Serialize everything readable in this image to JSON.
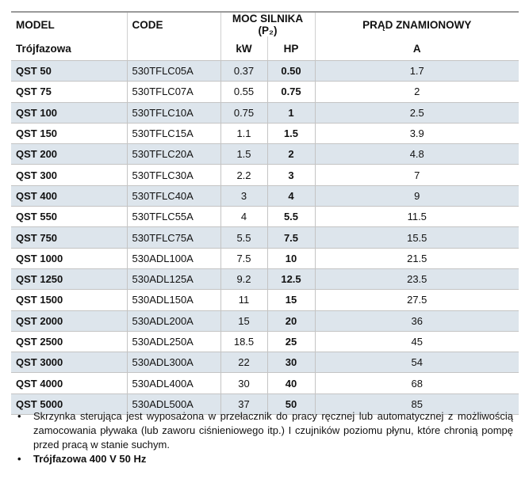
{
  "headers": {
    "model": "MODEL",
    "code": "CODE",
    "power": "MOC SILNIKA  (P₂)",
    "current": "PRĄD ZNAMIONOWY",
    "subtype": "Trójfazowa",
    "kw": "kW",
    "hp": "HP",
    "a": "A"
  },
  "rows": [
    [
      "QST 50",
      "530TFLC05A",
      "0.37",
      "0.50",
      "1.7"
    ],
    [
      "QST 75",
      "530TFLC07A",
      "0.55",
      "0.75",
      "2"
    ],
    [
      "QST 100",
      "530TFLC10A",
      "0.75",
      "1",
      "2.5"
    ],
    [
      "QST 150",
      "530TFLC15A",
      "1.1",
      "1.5",
      "3.9"
    ],
    [
      "QST 200",
      "530TFLC20A",
      "1.5",
      "2",
      "4.8"
    ],
    [
      "QST 300",
      "530TFLC30A",
      "2.2",
      "3",
      "7"
    ],
    [
      "QST 400",
      "530TFLC40A",
      "3",
      "4",
      "9"
    ],
    [
      "QST 550",
      "530TFLC55A",
      "4",
      "5.5",
      "11.5"
    ],
    [
      "QST 750",
      "530TFLC75A",
      "5.5",
      "7.5",
      "15.5"
    ],
    [
      "QST 1000",
      "530ADL100A",
      "7.5",
      "10",
      "21.5"
    ],
    [
      "QST 1250",
      "530ADL125A",
      "9.2",
      "12.5",
      "23.5"
    ],
    [
      "QST 1500",
      "530ADL150A",
      "11",
      "15",
      "27.5"
    ],
    [
      "QST 2000",
      "530ADL200A",
      "15",
      "20",
      "36"
    ],
    [
      "QST 2500",
      "530ADL250A",
      "18.5",
      "25",
      "45"
    ],
    [
      "QST 3000",
      "530ADL300A",
      "22",
      "30",
      "54"
    ],
    [
      "QST 4000",
      "530ADL400A",
      "30",
      "40",
      "68"
    ],
    [
      "QST 5000",
      "530ADL500A",
      "37",
      "50",
      "85"
    ]
  ],
  "notes": [
    "Skrzynka sterująca jest wyposażona w przełacznik do pracy ręcznej lub automatycznej z możliwością zamocowania pływaka (lub zaworu ciśnieniowego itp.) I czujników poziomu płynu, które chronią pompę przed pracą w stanie suchym.",
    "Trójfazowa 400 V 50 Hz"
  ],
  "bullet": "•"
}
